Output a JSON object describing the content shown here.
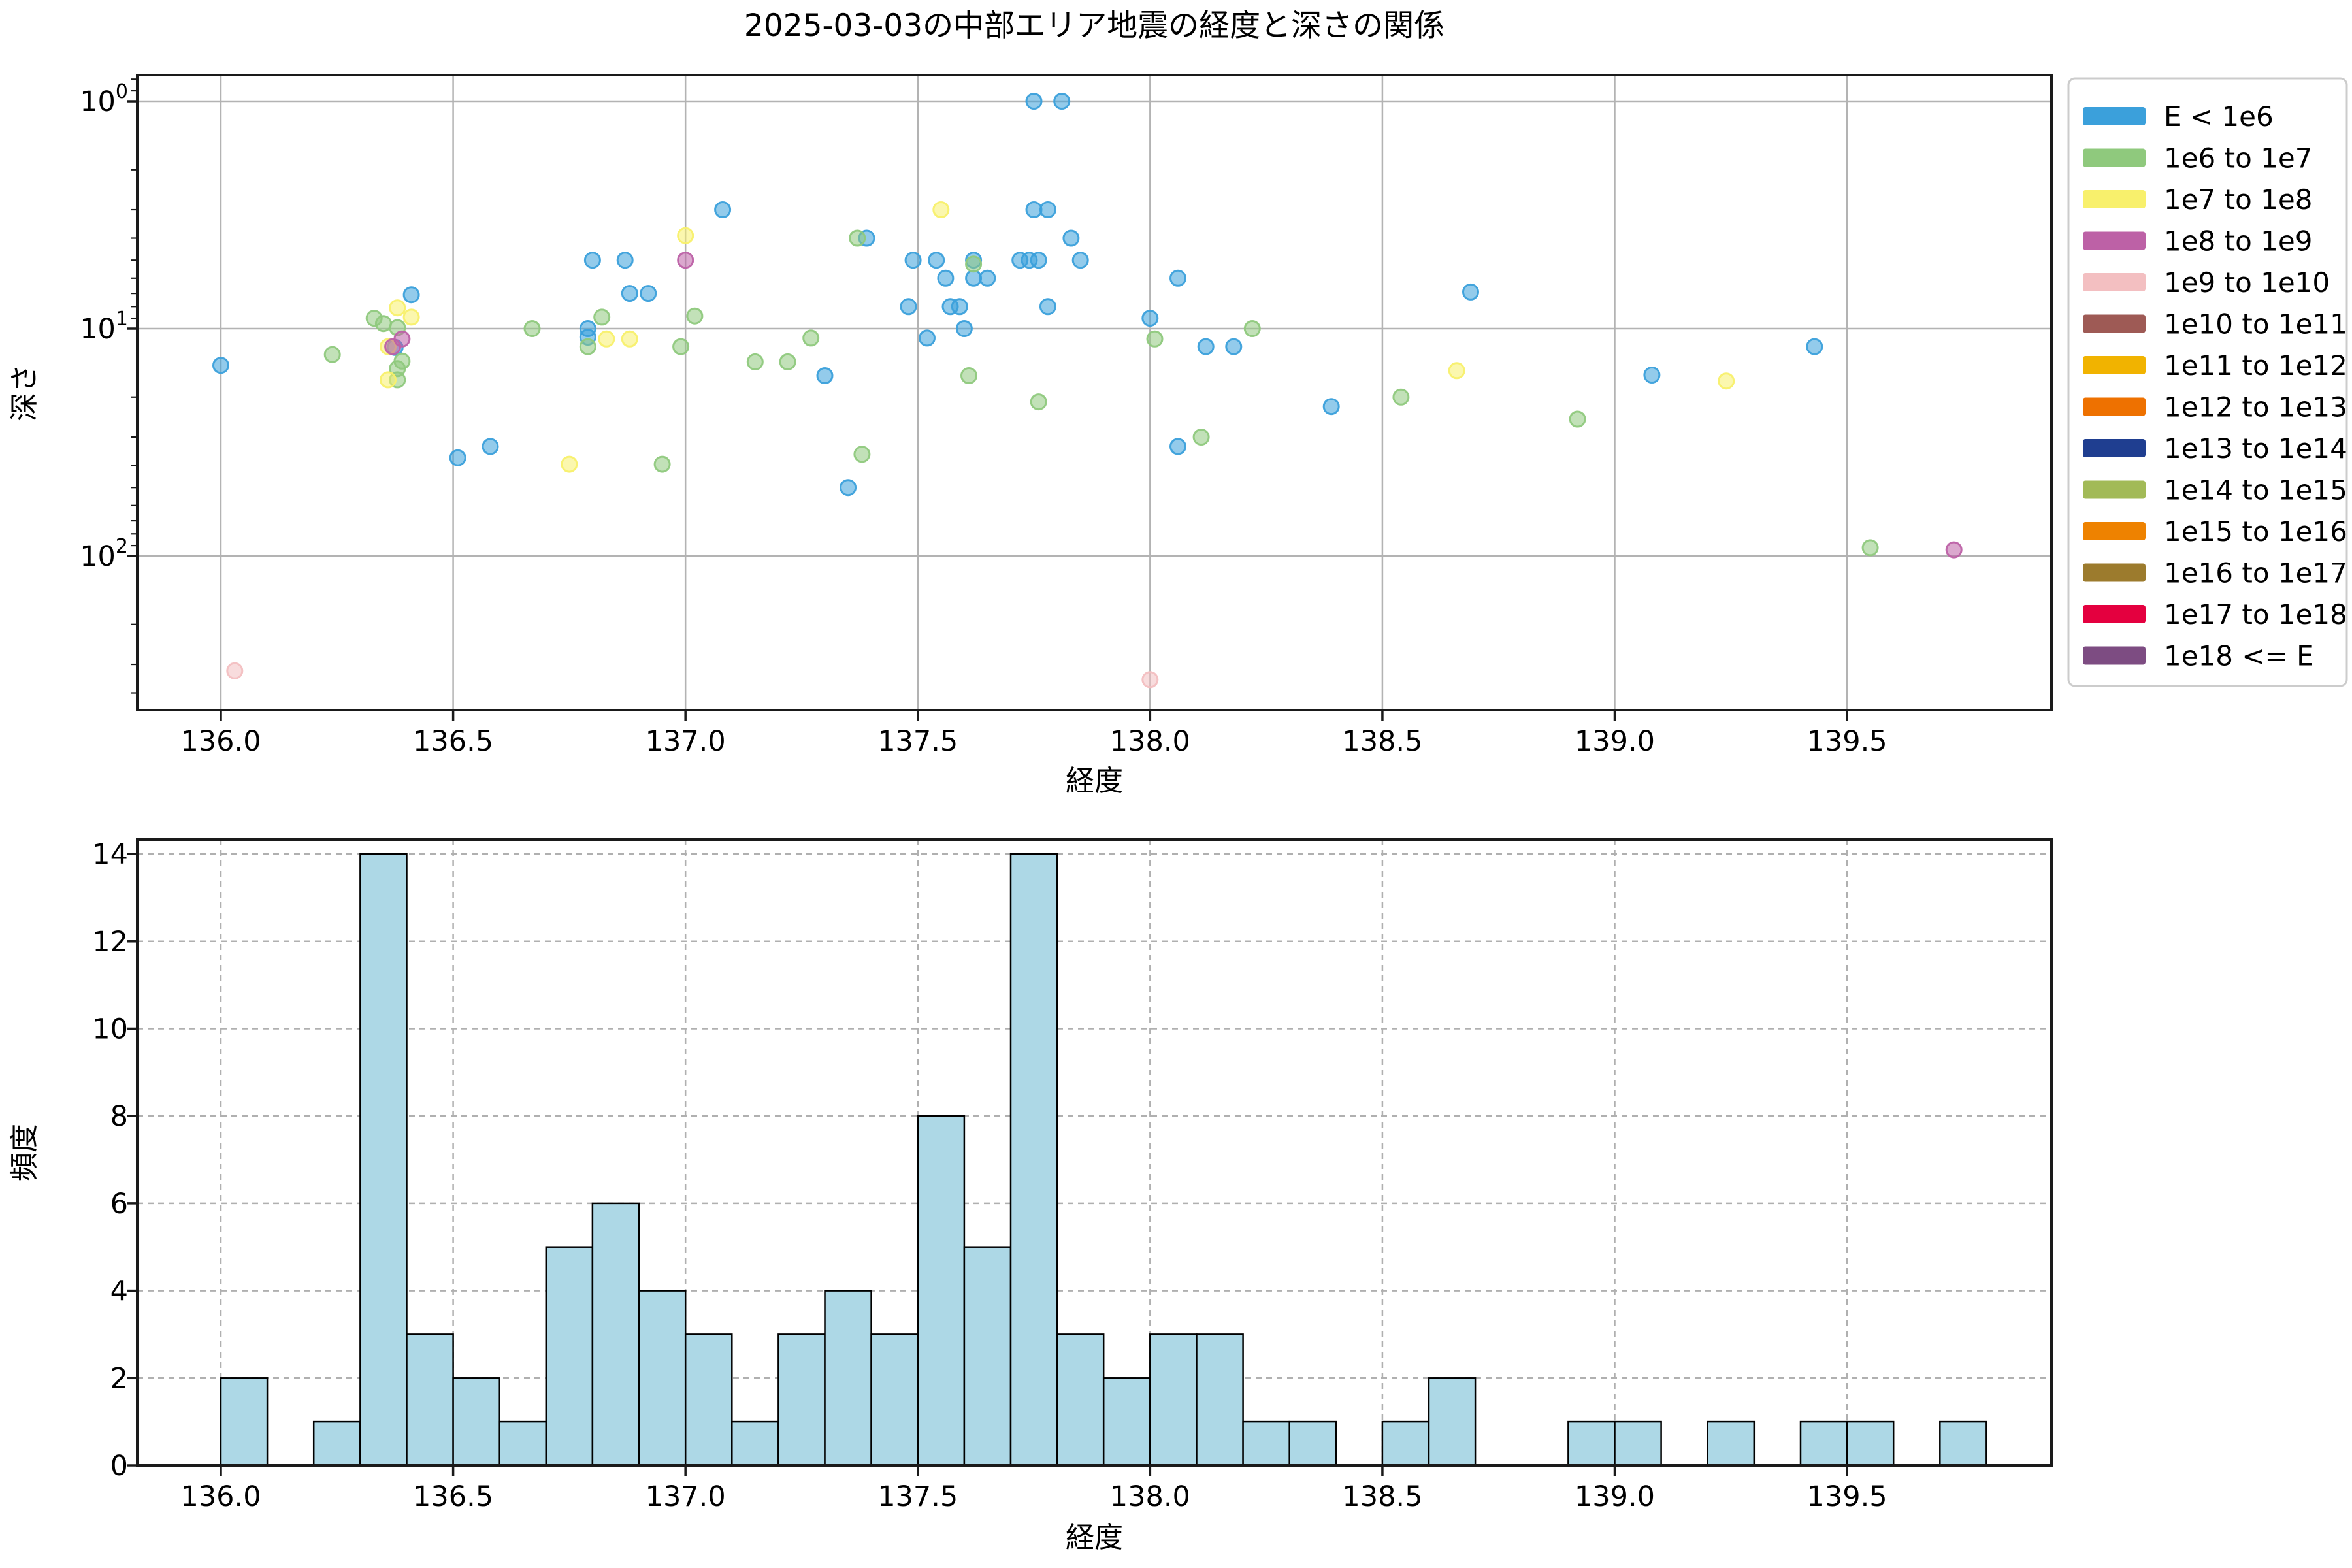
{
  "title": "2025-03-03の中部エリア地震の経度と深さの関係",
  "scatter": {
    "xlabel": "経度",
    "ylabel": "深さ",
    "x_tick_labels": [
      "136.0",
      "136.5",
      "137.0",
      "137.5",
      "138.0",
      "138.5",
      "139.0",
      "139.5"
    ],
    "y_tick_exponents": [
      0,
      1,
      2
    ]
  },
  "histogram": {
    "xlabel": "経度",
    "ylabel": "頻度",
    "y_tick_labels": [
      "0",
      "2",
      "4",
      "6",
      "8",
      "10",
      "12",
      "14"
    ]
  },
  "legend": {
    "entries": [
      {
        "label": "E < 1e6",
        "color": "#3BA0DB"
      },
      {
        "label": "1e6 to 1e7",
        "color": "#8FC97D"
      },
      {
        "label": "1e7 to 1e8",
        "color": "#F8F06C"
      },
      {
        "label": "1e8 to 1e9",
        "color": "#BD61A6"
      },
      {
        "label": "1e9 to 1e10",
        "color": "#F3BFC1"
      },
      {
        "label": "1e10 to 1e11",
        "color": "#9E5A55"
      },
      {
        "label": "1e11 to 1e12",
        "color": "#F1B300"
      },
      {
        "label": "1e12 to 1e13",
        "color": "#EE7100"
      },
      {
        "label": "1e13 to 1e14",
        "color": "#1F3E90"
      },
      {
        "label": "1e14 to 1e15",
        "color": "#A2BA57"
      },
      {
        "label": "1e15 to 1e16",
        "color": "#EE8200"
      },
      {
        "label": "1e16 to 1e17",
        "color": "#9C7B2D"
      },
      {
        "label": "1e17 to 1e18",
        "color": "#E4003F"
      },
      {
        "label": "1e18 <= E",
        "color": "#7D4C82"
      }
    ]
  },
  "chart_data": [
    {
      "type": "scatter",
      "title": "2025-03-03の中部エリア地震の経度と深さの関係",
      "xlabel": "経度",
      "ylabel": "深さ",
      "x_gridlines": [
        136.0,
        136.5,
        137.0,
        137.5,
        138.0,
        138.5,
        139.0,
        139.5
      ],
      "y_gridlines": [
        1,
        10,
        100
      ],
      "xlim": [
        135.82,
        139.94
      ],
      "ylim": [
        0.77,
        476
      ],
      "y_scale": "log",
      "y_inverted": true,
      "grid": "solid",
      "legend_position": "outside-right",
      "series": [
        {
          "name": "E < 1e6",
          "points": [
            [
              136.0,
              14.5
            ],
            [
              136.41,
              7.1
            ],
            [
              136.375,
              12.1
            ],
            [
              136.51,
              37
            ],
            [
              136.58,
              33
            ],
            [
              136.79,
              10.0
            ],
            [
              136.79,
              10.9
            ],
            [
              136.8,
              5.0
            ],
            [
              136.87,
              5.0
            ],
            [
              136.88,
              7.0
            ],
            [
              136.92,
              7.0
            ],
            [
              137.08,
              3.0
            ],
            [
              137.3,
              16.1
            ],
            [
              137.39,
              4.0
            ],
            [
              137.35,
              50
            ],
            [
              137.49,
              5.0
            ],
            [
              137.54,
              5.0
            ],
            [
              137.62,
              5.0
            ],
            [
              137.72,
              5.0
            ],
            [
              137.74,
              5.0
            ],
            [
              137.76,
              5.0
            ],
            [
              137.85,
              5.0
            ],
            [
              137.56,
              6.0
            ],
            [
              137.62,
              6.0
            ],
            [
              137.65,
              6.0
            ],
            [
              137.48,
              8.0
            ],
            [
              137.57,
              8.0
            ],
            [
              137.59,
              8.0
            ],
            [
              137.78,
              8.0
            ],
            [
              137.6,
              10.0
            ],
            [
              137.52,
              11.0
            ],
            [
              137.75,
              1.0
            ],
            [
              137.81,
              1.0
            ],
            [
              137.75,
              3.0
            ],
            [
              137.78,
              3.0
            ],
            [
              137.83,
              4.0
            ],
            [
              138.0,
              9.0
            ],
            [
              138.06,
              6.0
            ],
            [
              138.12,
              12.0
            ],
            [
              138.18,
              12.0
            ],
            [
              138.06,
              33.0
            ],
            [
              138.39,
              22.0
            ],
            [
              138.69,
              6.9
            ],
            [
              139.08,
              16.0
            ],
            [
              139.43,
              12.0
            ]
          ]
        },
        {
          "name": "1e6 to 1e7",
          "points": [
            [
              136.24,
              13
            ],
            [
              136.33,
              9.0
            ],
            [
              136.35,
              9.5
            ],
            [
              136.38,
              9.9
            ],
            [
              136.39,
              13.9
            ],
            [
              136.38,
              15.0
            ],
            [
              136.38,
              16.8
            ],
            [
              136.67,
              10.0
            ],
            [
              136.79,
              12.0
            ],
            [
              136.82,
              8.9
            ],
            [
              136.95,
              39.5
            ],
            [
              136.99,
              12.0
            ],
            [
              137.02,
              8.8
            ],
            [
              137.15,
              14.0
            ],
            [
              137.22,
              14.0
            ],
            [
              137.27,
              11.0
            ],
            [
              137.37,
              4.0
            ],
            [
              137.38,
              35.7
            ],
            [
              137.62,
              5.2
            ],
            [
              137.61,
              16.1
            ],
            [
              137.76,
              21.0
            ],
            [
              138.01,
              11.1
            ],
            [
              138.11,
              30.0
            ],
            [
              138.22,
              10.0
            ],
            [
              138.54,
              20.0
            ],
            [
              138.92,
              25.0
            ],
            [
              139.55,
              92.0
            ]
          ]
        },
        {
          "name": "1e7 to 1e8",
          "points": [
            [
              136.36,
              12.0
            ],
            [
              136.36,
              16.8
            ],
            [
              136.38,
              8.1
            ],
            [
              136.41,
              8.9
            ],
            [
              136.75,
              39.5
            ],
            [
              136.83,
              11.1
            ],
            [
              136.88,
              11.1
            ],
            [
              137.0,
              3.9
            ],
            [
              137.55,
              3.0
            ],
            [
              138.66,
              15.3
            ],
            [
              139.24,
              17.0
            ]
          ]
        },
        {
          "name": "1e8 to 1e9",
          "points": [
            [
              136.39,
              11.1
            ],
            [
              136.37,
              12.0
            ],
            [
              137.0,
              5.0
            ],
            [
              139.73,
              94.0
            ]
          ]
        },
        {
          "name": "1e9 to 1e10",
          "points": [
            [
              136.03,
              320
            ],
            [
              138.0,
              350
            ]
          ]
        },
        {
          "name": "1e10 to 1e11",
          "points": []
        },
        {
          "name": "1e11 to 1e12",
          "points": []
        },
        {
          "name": "1e12 to 1e13",
          "points": []
        },
        {
          "name": "1e13 to 1e14",
          "points": []
        },
        {
          "name": "1e14 to 1e15",
          "points": []
        },
        {
          "name": "1e15 to 1e16",
          "points": []
        },
        {
          "name": "1e16 to 1e17",
          "points": []
        },
        {
          "name": "1e17 to 1e18",
          "points": []
        },
        {
          "name": "1e18 <= E",
          "points": []
        }
      ]
    },
    {
      "type": "bar",
      "subtype": "histogram",
      "xlabel": "経度",
      "ylabel": "頻度",
      "bin_start": 136.0,
      "bin_width": 0.1,
      "counts": [
        2,
        0,
        1,
        14,
        3,
        2,
        1,
        5,
        6,
        4,
        3,
        1,
        3,
        4,
        3,
        8,
        5,
        14,
        3,
        2,
        3,
        3,
        1,
        1,
        0,
        1,
        2,
        0,
        0,
        1,
        1,
        0,
        1,
        0,
        1,
        1,
        0,
        1
      ],
      "ylim": [
        0,
        14.33
      ],
      "y_ticks": [
        0,
        2,
        4,
        6,
        8,
        10,
        12,
        14
      ],
      "x_ticks": [
        136.0,
        136.5,
        137.0,
        137.5,
        138.0,
        138.5,
        139.0,
        139.5
      ],
      "bar_color": "#ADD8E6",
      "bar_edge_color": "#000000",
      "grid": "dashed"
    }
  ]
}
